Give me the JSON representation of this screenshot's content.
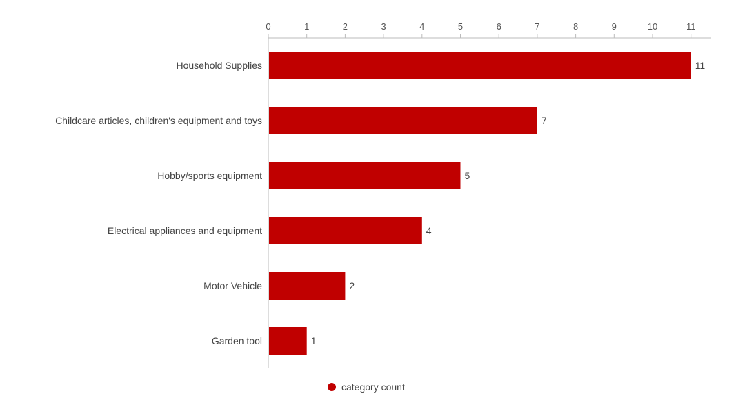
{
  "chart_data": {
    "type": "bar",
    "orientation": "horizontal",
    "categories": [
      "Household Supplies",
      "Childcare articles, children's equipment and toys",
      "Hobby/sports equipment",
      "Electrical appliances and equipment",
      "Motor Vehicle",
      "Garden tool"
    ],
    "series": [
      {
        "name": "category count",
        "color": "#c00000",
        "values": [
          11,
          7,
          5,
          4,
          2,
          1
        ]
      }
    ],
    "xlim": [
      0,
      11
    ],
    "x_ticks": [
      0,
      1,
      2,
      3,
      4,
      5,
      6,
      7,
      8,
      9,
      10,
      11
    ],
    "x_axis_position": "top",
    "grid": false,
    "data_labels": true,
    "legend_position": "bottom"
  }
}
